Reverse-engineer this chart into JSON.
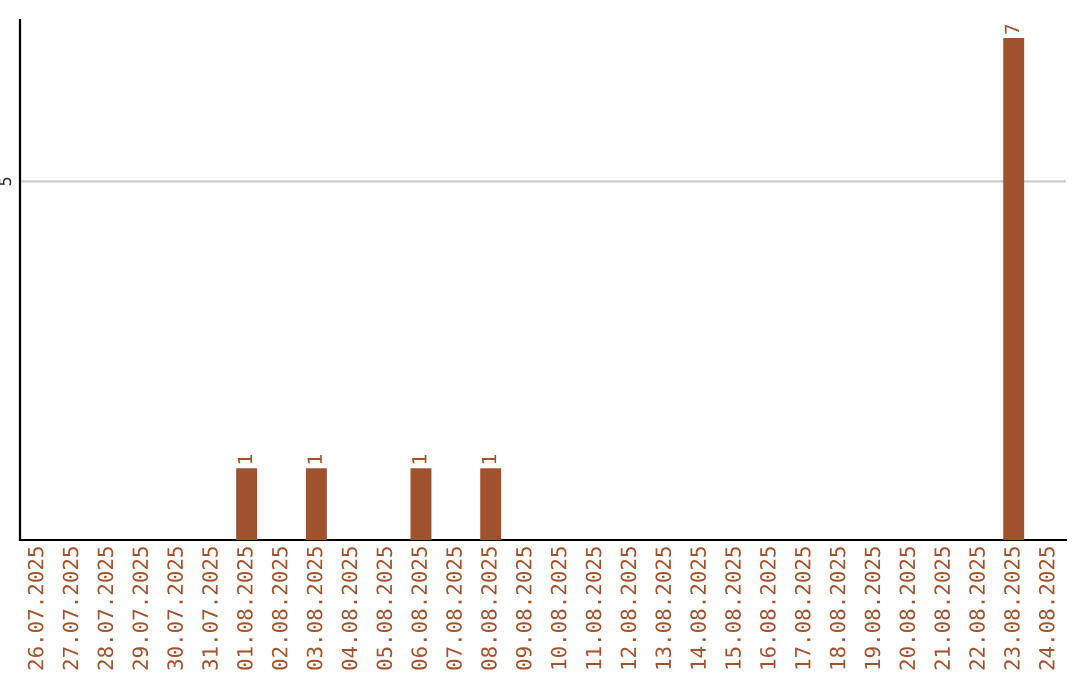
{
  "chart_data": {
    "type": "bar",
    "categories": [
      "26.07.2025",
      "27.07.2025",
      "28.07.2025",
      "29.07.2025",
      "30.07.2025",
      "31.07.2025",
      "01.08.2025",
      "02.08.2025",
      "03.08.2025",
      "04.08.2025",
      "05.08.2025",
      "06.08.2025",
      "07.08.2025",
      "08.08.2025",
      "09.08.2025",
      "10.08.2025",
      "11.08.2025",
      "12.08.2025",
      "13.08.2025",
      "14.08.2025",
      "15.08.2025",
      "16.08.2025",
      "17.08.2025",
      "18.08.2025",
      "19.08.2025",
      "20.08.2025",
      "21.08.2025",
      "22.08.2025",
      "23.08.2025",
      "24.08.2025"
    ],
    "values": [
      null,
      null,
      null,
      null,
      null,
      null,
      1,
      null,
      1,
      null,
      null,
      1,
      null,
      1,
      null,
      null,
      null,
      null,
      null,
      null,
      null,
      null,
      null,
      null,
      null,
      null,
      null,
      null,
      7,
      null
    ],
    "color": "#a0522d",
    "ylim": [
      0,
      7.25
    ],
    "yticks": [
      5
    ],
    "grid": "y",
    "data_labels": true
  }
}
